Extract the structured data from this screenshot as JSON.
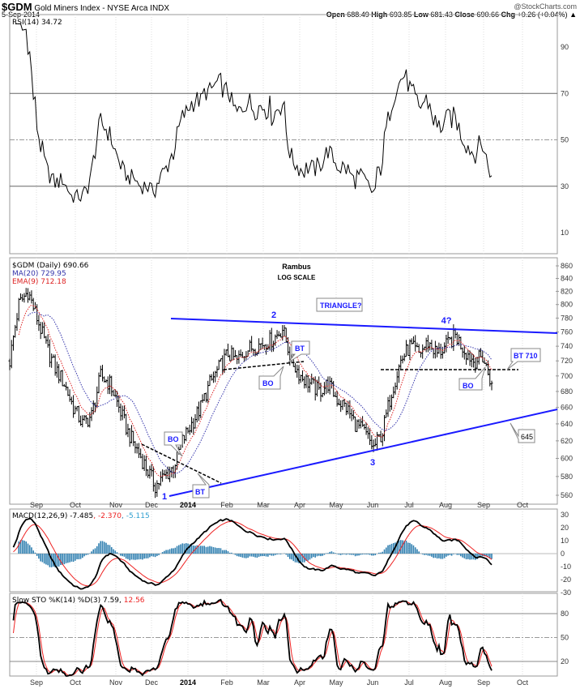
{
  "header": {
    "symbol": "$GDM",
    "name": "Gold Miners Index - NYSE Arca INDX",
    "date": "5-Sep-2014",
    "copyright": "@StockCharts.com",
    "open_label": "Open",
    "open": "688.49",
    "high_label": "High",
    "high": "693.85",
    "low_label": "Low",
    "low": "681.43",
    "close_label": "Close",
    "close": "690.66",
    "chg_label": "Chg",
    "chg": "+0.26 (+0.04%)"
  },
  "colors": {
    "ma": "#3333aa",
    "ema": "#dd2222",
    "trend": "#1a1aff",
    "hist": "#2f7fb0",
    "signal": "#ee2222"
  },
  "chart_data": [
    {
      "type": "line",
      "panel": "rsi",
      "legend": "RSI(14) 34.72",
      "ylim": [
        0,
        100
      ],
      "yticks": [
        10,
        30,
        50,
        70,
        90
      ],
      "ref_lines": [
        30,
        50,
        70
      ]
    },
    {
      "type": "ohlc",
      "panel": "price",
      "legend": "$GDM (Daily) 690.66",
      "ma_legend": "MA(20) 729.95",
      "ema_legend": "EMA(9) 712.18",
      "title": "Rambus",
      "subtitle": "LOG SCALE",
      "scale": "log",
      "ylim": [
        560,
        860
      ],
      "yticks": [
        560,
        580,
        600,
        620,
        640,
        660,
        680,
        700,
        720,
        740,
        760,
        780,
        800,
        820,
        840,
        860
      ],
      "weekly_closes": [
        720,
        800,
        820,
        780,
        740,
        710,
        690,
        660,
        640,
        650,
        700,
        690,
        660,
        630,
        610,
        590,
        570,
        580,
        590,
        620,
        640,
        660,
        690,
        710,
        730,
        720,
        735,
        740,
        745,
        750,
        765,
        720,
        700,
        690,
        680,
        690,
        670,
        660,
        640,
        630,
        612,
        630,
        680,
        720,
        740,
        730,
        745,
        730,
        740,
        755,
        735,
        720,
        725,
        690
      ],
      "annotations": {
        "wave1": "1",
        "wave2": "2",
        "wave3": "3",
        "wave4": "4?",
        "triangle": "TRIANGLE?",
        "bo1": "BO",
        "bt1": "BT",
        "bo2": "BO",
        "bt2": "BT",
        "bo3": "BO",
        "bt710": "BT 710",
        "level645": "645"
      }
    },
    {
      "type": "line",
      "panel": "macd",
      "legend": "MACD(12,26,9) -7.485",
      "signal_legend": "-2.370",
      "hist_legend": "-5.115",
      "ylim": [
        -30,
        30
      ],
      "yticks": [
        -30,
        -20,
        -10,
        0,
        10,
        20,
        30
      ]
    },
    {
      "type": "line",
      "panel": "sto",
      "legend": "Slow STO %K(14) %D(3) 7.59",
      "d_legend": "12.56",
      "ylim": [
        0,
        100
      ],
      "yticks": [
        20,
        50,
        80
      ]
    }
  ],
  "x_axis": {
    "months": [
      "Sep",
      "Oct",
      "Nov",
      "Dec",
      "2014",
      "Feb",
      "Mar",
      "Apr",
      "May",
      "Jun",
      "Jul",
      "Aug",
      "Sep",
      "Oct"
    ]
  }
}
